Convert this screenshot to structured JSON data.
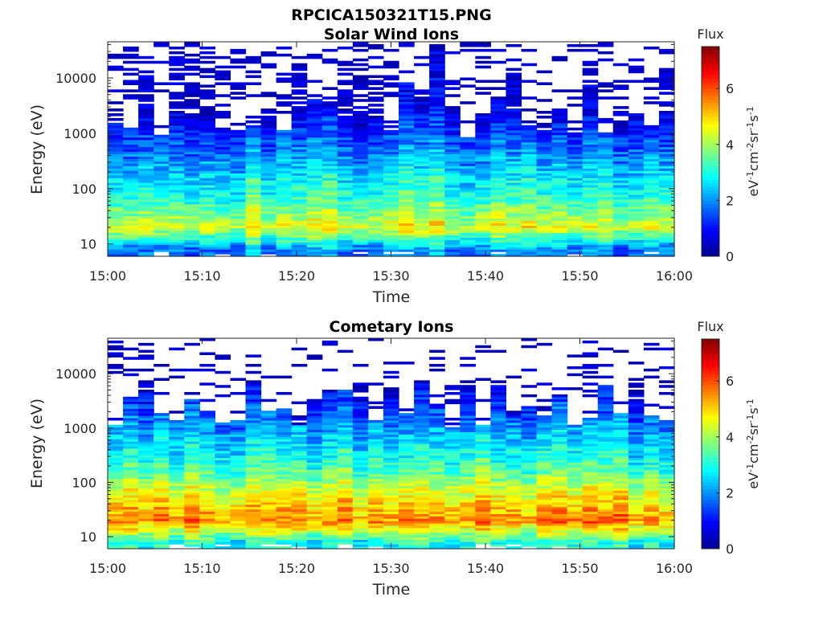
{
  "figure": {
    "title": "RPCICA150321T15.PNG"
  },
  "colormap": [
    "#00008f",
    "#0000ff",
    "#0080ff",
    "#00ffff",
    "#80ff80",
    "#ffff00",
    "#ff8000",
    "#ff0000",
    "#800000"
  ],
  "chart_data": [
    {
      "type": "heatmap",
      "title": "Solar Wind Ions",
      "xlabel": "Time",
      "ylabel": "Energy (eV)",
      "xticks": [
        "15:00",
        "15:10",
        "15:20",
        "15:30",
        "15:40",
        "15:50",
        "16:00"
      ],
      "xlim_minutes": [
        0,
        60
      ],
      "yscale": "log",
      "yticks": [
        10,
        100,
        1000,
        10000
      ],
      "ytick_labels": [
        "10",
        "100",
        "1000",
        "10000"
      ],
      "ylim": [
        6,
        45000
      ],
      "colorbar": {
        "label": "Flux",
        "units": "eV-1cm-2sr-1s-1",
        "range": [
          0,
          7.5
        ],
        "ticks": [
          "0",
          "2",
          "4",
          "6"
        ]
      },
      "time_bins": 37,
      "energy_bins_approx": 90,
      "typical_flux_by_energy": [
        {
          "energy_ev": 8,
          "flux": 2.0
        },
        {
          "energy_ev": 20,
          "flux": 4.6
        },
        {
          "energy_ev": 60,
          "flux": 3.4
        },
        {
          "energy_ev": 200,
          "flux": 2.6
        },
        {
          "energy_ev": 800,
          "flux": 1.6
        },
        {
          "energy_ev": 3000,
          "flux": 0.6
        },
        {
          "energy_ev": 30000,
          "flux": 0.4
        }
      ]
    },
    {
      "type": "heatmap",
      "title": "Cometary Ions",
      "xlabel": "Time",
      "ylabel": "Energy (eV)",
      "xticks": [
        "15:00",
        "15:10",
        "15:20",
        "15:30",
        "15:40",
        "15:50",
        "16:00"
      ],
      "xlim_minutes": [
        0,
        60
      ],
      "yscale": "log",
      "yticks": [
        10,
        100,
        1000,
        10000
      ],
      "ytick_labels": [
        "10",
        "100",
        "1000",
        "10000"
      ],
      "ylim": [
        6,
        45000
      ],
      "colorbar": {
        "label": "Flux",
        "units": "eV-1cm-2sr-1s-1",
        "range": [
          0,
          7.5
        ],
        "ticks": [
          "0",
          "2",
          "4",
          "6"
        ]
      },
      "time_bins": 37,
      "energy_bins_approx": 90,
      "typical_flux_by_energy": [
        {
          "energy_ev": 8,
          "flux": 3.0
        },
        {
          "energy_ev": 20,
          "flux": 5.6
        },
        {
          "energy_ev": 60,
          "flux": 4.6
        },
        {
          "energy_ev": 200,
          "flux": 3.2
        },
        {
          "energy_ev": 800,
          "flux": 2.3
        },
        {
          "energy_ev": 3000,
          "flux": 1.2
        },
        {
          "energy_ev": 8000,
          "flux": 0.5
        }
      ]
    }
  ]
}
